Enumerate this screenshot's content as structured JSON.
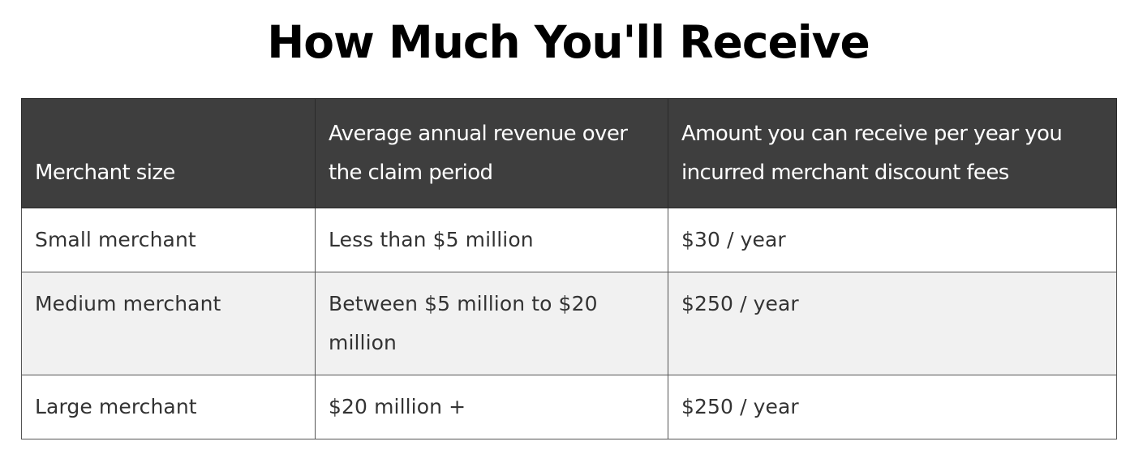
{
  "title": "How Much You'll Receive",
  "table": {
    "headers": [
      "Merchant size",
      "Average annual revenue over the claim period",
      "Amount you can receive per year you incurred merchant discount fees"
    ],
    "rows": [
      [
        "Small merchant",
        "Less than $5 million",
        "$30 / year"
      ],
      [
        "Medium merchant",
        "Between $5 million to $20 million",
        "$250 / year"
      ],
      [
        "Large merchant",
        "$20 million +",
        "$250 / year"
      ]
    ]
  },
  "colors": {
    "header_background": "#3e3e3e",
    "header_text": "#ffffff",
    "alt_row_background": "#f1f1f1",
    "body_text": "#333333",
    "title_text": "#000000"
  }
}
